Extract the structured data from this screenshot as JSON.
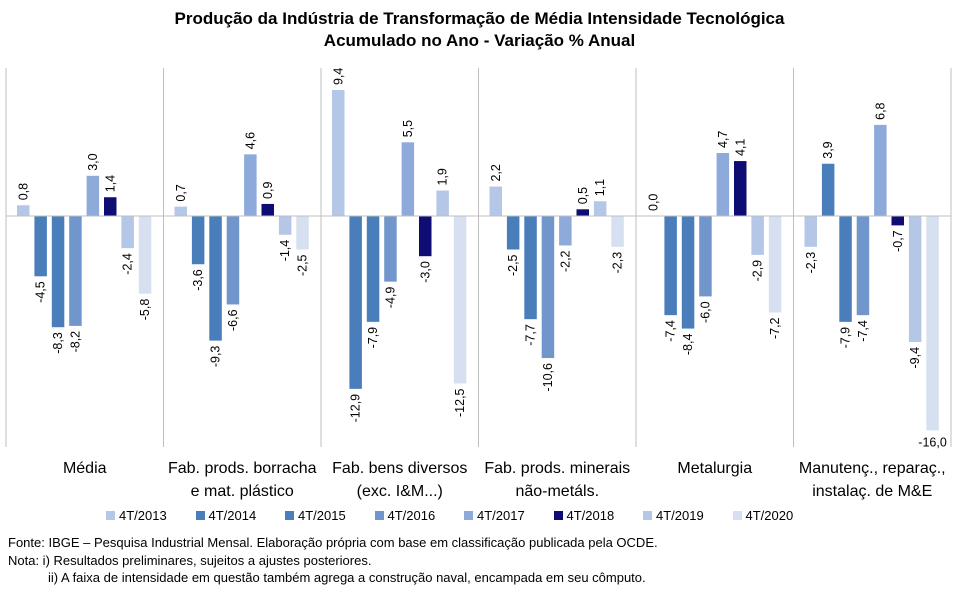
{
  "chart_data": {
    "type": "bar",
    "title": "Produção da Indústria de Transformação de Média Intensidade Tecnológica",
    "subtitle": "Acumulado no Ano - Variação % Anual",
    "xlabel": "",
    "ylabel": "",
    "ylim": [
      -16.0,
      9.4
    ],
    "grid": false,
    "legend_position": "bottom",
    "categories": [
      [
        "Média"
      ],
      [
        "Fab. prods. borracha",
        "e mat. plástico"
      ],
      [
        "Fab. bens diversos",
        "(exc. I&M...)"
      ],
      [
        "Fab. prods. minerais",
        "não-metáls."
      ],
      [
        "Metalurgia"
      ],
      [
        "Manutenç., reparaç.,",
        "instalaç. de M&E"
      ]
    ],
    "series": [
      {
        "name": "4T/2013",
        "color": "#b4c7e7",
        "values": [
          0.8,
          0.7,
          9.4,
          2.2,
          0.0,
          -2.3
        ],
        "labels": [
          "0,8",
          "0,7",
          "9,4",
          "2,2",
          "0,0",
          "-2,3"
        ]
      },
      {
        "name": "4T/2014",
        "color": "#4a7ebb",
        "values": [
          -4.5,
          -3.6,
          -12.9,
          -2.5,
          -7.4,
          3.9
        ],
        "labels": [
          "-4,5",
          "-3,6",
          "-12,9",
          "-2,5",
          "-7,4",
          "3,9"
        ]
      },
      {
        "name": "4T/2015",
        "color": "#4a7ebb",
        "values": [
          -8.3,
          -9.3,
          -7.9,
          -7.7,
          -8.4,
          -7.9
        ],
        "labels": [
          "-8,3",
          "-9,3",
          "-7,9",
          "-7,7",
          "-8,4",
          "-7,9"
        ]
      },
      {
        "name": "4T/2016",
        "color": "#7196cc",
        "values": [
          -8.2,
          -6.6,
          -4.9,
          -10.6,
          -6.0,
          -7.4
        ],
        "labels": [
          "-8,2",
          "-6,6",
          "-4,9",
          "-10,6",
          "-6,0",
          "-7,4"
        ]
      },
      {
        "name": "4T/2017",
        "color": "#8eaadb",
        "values": [
          3.0,
          4.6,
          5.5,
          -2.2,
          4.7,
          6.8
        ],
        "labels": [
          "3,0",
          "4,6",
          "5,5",
          "-2,2",
          "4,7",
          "6,8"
        ]
      },
      {
        "name": "4T/2018",
        "color": "#0d0d73",
        "values": [
          1.4,
          0.9,
          -3.0,
          0.5,
          4.1,
          -0.7
        ],
        "labels": [
          "1,4",
          "0,9",
          "-3,0",
          "0,5",
          "4,1",
          "-0,7"
        ]
      },
      {
        "name": "4T/2019",
        "color": "#b4c7e7",
        "values": [
          -2.4,
          -1.4,
          1.9,
          1.1,
          -2.9,
          -9.4
        ],
        "labels": [
          "-2,4",
          "-1,4",
          "1,9",
          "1,1",
          "-2,9",
          "-9,4"
        ]
      },
      {
        "name": "4T/2020",
        "color": "#d6e0f0",
        "values": [
          -5.8,
          -2.5,
          -12.5,
          -2.3,
          -7.2,
          -16.0
        ],
        "labels": [
          "-5,8",
          "-2,5",
          "-12,5",
          "-2,3",
          "-7,2",
          "-16,0"
        ]
      }
    ]
  },
  "notes": {
    "source": "Fonte: IBGE – Pesquisa Industrial Mensal. Elaboração própria com base em classificação publicada pela OCDE.",
    "note1": "Nota: i) Resultados preliminares, sujeitos a ajustes posteriores.",
    "note2": "ii) A faixa de intensidade em questão também agrega a construção naval, encampada em seu cômputo."
  }
}
